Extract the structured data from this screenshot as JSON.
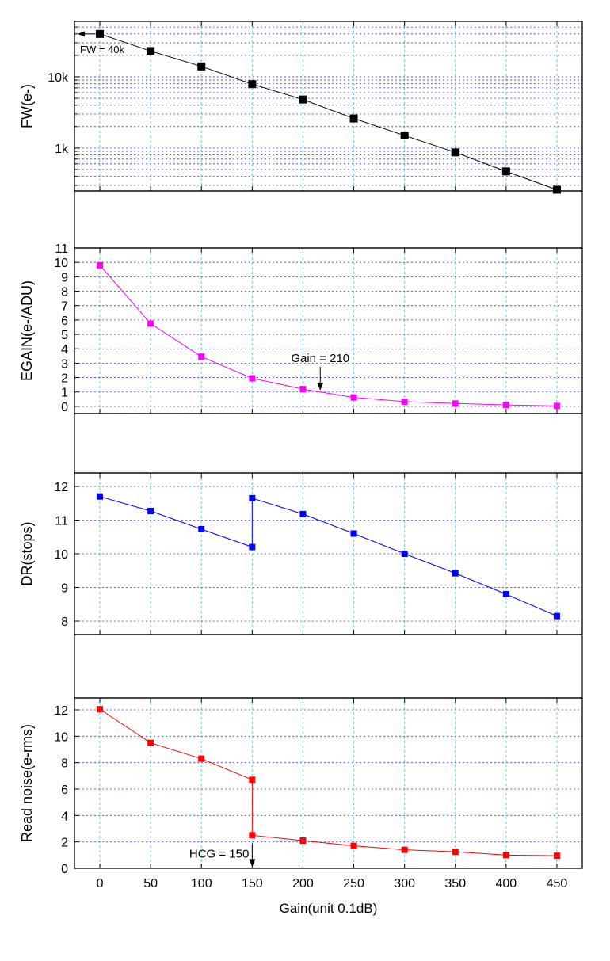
{
  "figure": {
    "x_axis": {
      "label": "Gain(unit 0.1dB)",
      "ticks": [
        0,
        50,
        100,
        150,
        200,
        250,
        300,
        350,
        400,
        450
      ],
      "range": [
        -25,
        475
      ]
    }
  },
  "chart_data": [
    {
      "id": "fw",
      "type": "line",
      "scale": "log",
      "ylabel": "FW(e-)",
      "ylim": [
        250,
        60000
      ],
      "ytick_labels": [
        {
          "v": 1000,
          "label": "1k"
        },
        {
          "v": 10000,
          "label": "10k"
        }
      ],
      "color": "#000000",
      "x": [
        0,
        50,
        100,
        150,
        200,
        250,
        300,
        350,
        400,
        450
      ],
      "values": [
        40000,
        23000,
        14000,
        7900,
        4800,
        2600,
        1500,
        870,
        470,
        260
      ],
      "annotation": {
        "text": "FW = 40k",
        "arrow": "left",
        "at_x": 0,
        "at_y": 40000
      }
    },
    {
      "id": "egain",
      "type": "line",
      "scale": "linear",
      "ylabel": "EGAIN(e-/ADU)",
      "ylim": [
        -0.5,
        11
      ],
      "yticks": [
        0,
        1,
        2,
        3,
        4,
        5,
        6,
        7,
        8,
        9,
        10,
        11
      ],
      "color": "#ff00ff",
      "x": [
        0,
        50,
        100,
        150,
        200,
        250,
        300,
        350,
        400,
        450
      ],
      "values": [
        9.8,
        5.75,
        3.45,
        1.95,
        1.2,
        0.62,
        0.33,
        0.2,
        0.1,
        0.03
      ],
      "annotation": {
        "text": "Gain = 210",
        "arrow": "down",
        "at_x": 217,
        "at_y": 1.1
      }
    },
    {
      "id": "dr",
      "type": "line",
      "scale": "linear",
      "ylabel": "DR(stops)",
      "ylim": [
        7.6,
        12.4
      ],
      "yticks": [
        8,
        9,
        10,
        11,
        12
      ],
      "color": "#0000ff",
      "x": [
        0,
        50,
        100,
        150,
        150,
        200,
        250,
        300,
        350,
        400,
        450
      ],
      "values": [
        11.7,
        11.27,
        10.73,
        10.2,
        11.65,
        11.18,
        10.6,
        10.0,
        9.42,
        8.8,
        8.15
      ]
    },
    {
      "id": "read_noise",
      "type": "line",
      "scale": "linear",
      "ylabel": "Read noise(e-rms)",
      "ylim": [
        0,
        12.9
      ],
      "yticks": [
        0,
        2,
        4,
        6,
        8,
        10,
        12
      ],
      "color": "#ff0000",
      "x": [
        0,
        50,
        100,
        150,
        150,
        200,
        250,
        300,
        350,
        400,
        450
      ],
      "values": [
        12.05,
        9.5,
        8.3,
        6.7,
        2.5,
        2.1,
        1.7,
        1.4,
        1.25,
        1.0,
        0.95
      ],
      "annotation": {
        "text": "HCG = 150",
        "arrow": "down",
        "at_x": 150,
        "at_y": 0.1
      }
    }
  ]
}
